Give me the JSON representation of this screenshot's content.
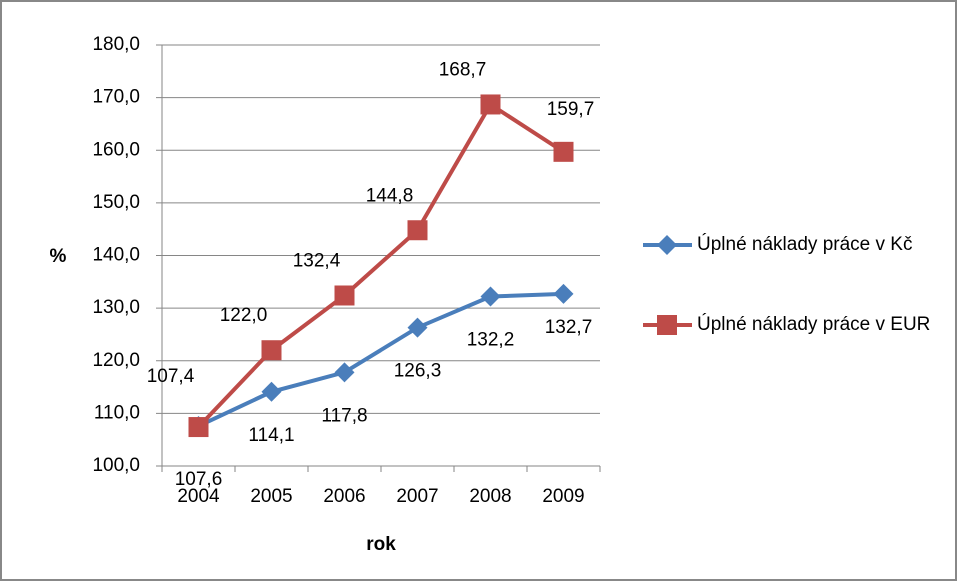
{
  "chart_data": {
    "type": "line",
    "xlabel": "rok",
    "ylabel": "%",
    "categories": [
      "2004",
      "2005",
      "2006",
      "2007",
      "2008",
      "2009"
    ],
    "series": [
      {
        "name": "Úplné náklady práce v Kč",
        "color": "#4a7ebb",
        "marker": "diamond",
        "values": [
          107.6,
          114.1,
          117.8,
          126.3,
          132.2,
          132.7
        ],
        "value_labels": [
          "107,6",
          "114,1",
          "117,8",
          "126,3",
          "132,2",
          "132,7"
        ]
      },
      {
        "name": "Úplné náklady práce v EUR",
        "color": "#be4b48",
        "marker": "square",
        "values": [
          107.4,
          122.0,
          132.4,
          144.8,
          168.7,
          159.7
        ],
        "value_labels": [
          "107,4",
          "122,0",
          "132,4",
          "144,8",
          "168,7",
          "159,7"
        ]
      }
    ],
    "ylim": [
      100,
      180
    ],
    "yticks": [
      {
        "value": 100,
        "label": "100,0"
      },
      {
        "value": 110,
        "label": "110,0"
      },
      {
        "value": 120,
        "label": "120,0"
      },
      {
        "value": 130,
        "label": "130,0"
      },
      {
        "value": 140,
        "label": "140,0"
      },
      {
        "value": 150,
        "label": "150,0"
      },
      {
        "value": 160,
        "label": "160,0"
      },
      {
        "value": 170,
        "label": "170,0"
      },
      {
        "value": 180,
        "label": "180,0"
      }
    ],
    "grid": true,
    "legend": "right"
  }
}
